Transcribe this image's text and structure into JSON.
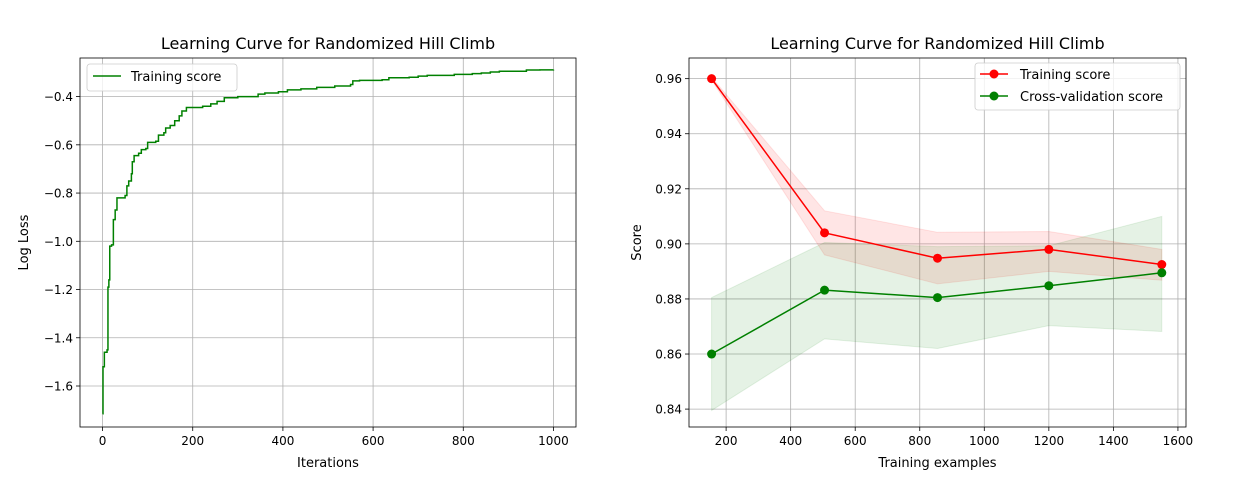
{
  "colors": {
    "training": "#ff0000",
    "cv": "#008000",
    "curve": "#008000",
    "grid": "#b0b0b0"
  },
  "chart_data": [
    {
      "type": "line",
      "title": "Learning Curve for Randomized Hill Climb",
      "xlabel": "Iterations",
      "ylabel": "Log Loss",
      "xlim": [
        -50,
        1050
      ],
      "ylim": [
        -1.77,
        -0.24
      ],
      "xticks": [
        0,
        200,
        400,
        600,
        800,
        1000
      ],
      "xtick_labels": [
        "0",
        "200",
        "400",
        "600",
        "800",
        "1000"
      ],
      "yticks": [
        -1.6,
        -1.4,
        -1.2,
        -1.0,
        -0.8,
        -0.6,
        -0.4
      ],
      "ytick_labels": [
        "−1.6",
        "−1.4",
        "−1.2",
        "−1.0",
        "−0.8",
        "−0.6",
        "−0.4"
      ],
      "grid": true,
      "legend_loc": "upper left",
      "series": [
        {
          "name": "Training score",
          "color": "#008000",
          "style": "step",
          "points": [
            [
              0,
              -1.715
            ],
            [
              1,
              -1.52
            ],
            [
              4,
              -1.46
            ],
            [
              10,
              -1.45
            ],
            [
              12,
              -1.19
            ],
            [
              14,
              -1.16
            ],
            [
              16,
              -1.02
            ],
            [
              20,
              -1.015
            ],
            [
              24,
              -0.91
            ],
            [
              28,
              -0.87
            ],
            [
              32,
              -0.82
            ],
            [
              50,
              -0.81
            ],
            [
              54,
              -0.77
            ],
            [
              58,
              -0.75
            ],
            [
              64,
              -0.72
            ],
            [
              66,
              -0.67
            ],
            [
              70,
              -0.645
            ],
            [
              80,
              -0.635
            ],
            [
              86,
              -0.62
            ],
            [
              96,
              -0.615
            ],
            [
              100,
              -0.59
            ],
            [
              118,
              -0.585
            ],
            [
              124,
              -0.56
            ],
            [
              136,
              -0.55
            ],
            [
              140,
              -0.53
            ],
            [
              150,
              -0.52
            ],
            [
              160,
              -0.5
            ],
            [
              170,
              -0.48
            ],
            [
              176,
              -0.46
            ],
            [
              186,
              -0.445
            ],
            [
              222,
              -0.44
            ],
            [
              240,
              -0.43
            ],
            [
              254,
              -0.42
            ],
            [
              270,
              -0.405
            ],
            [
              300,
              -0.4
            ],
            [
              345,
              -0.39
            ],
            [
              360,
              -0.385
            ],
            [
              390,
              -0.38
            ],
            [
              410,
              -0.372
            ],
            [
              440,
              -0.368
            ],
            [
              475,
              -0.362
            ],
            [
              515,
              -0.356
            ],
            [
              550,
              -0.35
            ],
            [
              555,
              -0.335
            ],
            [
              570,
              -0.333
            ],
            [
              620,
              -0.33
            ],
            [
              635,
              -0.322
            ],
            [
              680,
              -0.32
            ],
            [
              700,
              -0.315
            ],
            [
              720,
              -0.312
            ],
            [
              780,
              -0.308
            ],
            [
              820,
              -0.305
            ],
            [
              840,
              -0.302
            ],
            [
              860,
              -0.298
            ],
            [
              880,
              -0.295
            ],
            [
              940,
              -0.29
            ],
            [
              970,
              -0.289
            ],
            [
              1000,
              -0.288
            ]
          ]
        }
      ]
    },
    {
      "type": "line",
      "title": "Learning Curve for Randomized Hill Climb",
      "xlabel": "Training examples",
      "ylabel": "Score",
      "xlim": [
        85,
        1625
      ],
      "ylim": [
        0.8335,
        0.9675
      ],
      "xticks": [
        200,
        400,
        600,
        800,
        1000,
        1200,
        1400,
        1600
      ],
      "xtick_labels": [
        "200",
        "400",
        "600",
        "800",
        "1000",
        "1200",
        "1400",
        "1600"
      ],
      "yticks": [
        0.84,
        0.86,
        0.88,
        0.9,
        0.92,
        0.94,
        0.96
      ],
      "ytick_labels": [
        "0.84",
        "0.86",
        "0.88",
        "0.90",
        "0.92",
        "0.94",
        "0.96"
      ],
      "grid": true,
      "legend_loc": "upper right",
      "x": [
        155,
        505,
        855,
        1200,
        1550
      ],
      "series": [
        {
          "name": "Training score",
          "color": "#ff0000",
          "values": [
            0.96,
            0.904,
            0.8948,
            0.898,
            0.8925
          ],
          "band_lower": [
            0.9595,
            0.896,
            0.8855,
            0.89,
            0.8868
          ],
          "band_upper": [
            0.9605,
            0.912,
            0.9042,
            0.9045,
            0.898
          ]
        },
        {
          "name": "Cross-validation score",
          "color": "#008000",
          "values": [
            0.86,
            0.8832,
            0.8805,
            0.8848,
            0.8895
          ],
          "band_lower": [
            0.8395,
            0.8655,
            0.862,
            0.8703,
            0.8682
          ],
          "band_upper": [
            0.8805,
            0.9005,
            0.899,
            0.8993,
            0.91
          ]
        }
      ]
    }
  ]
}
